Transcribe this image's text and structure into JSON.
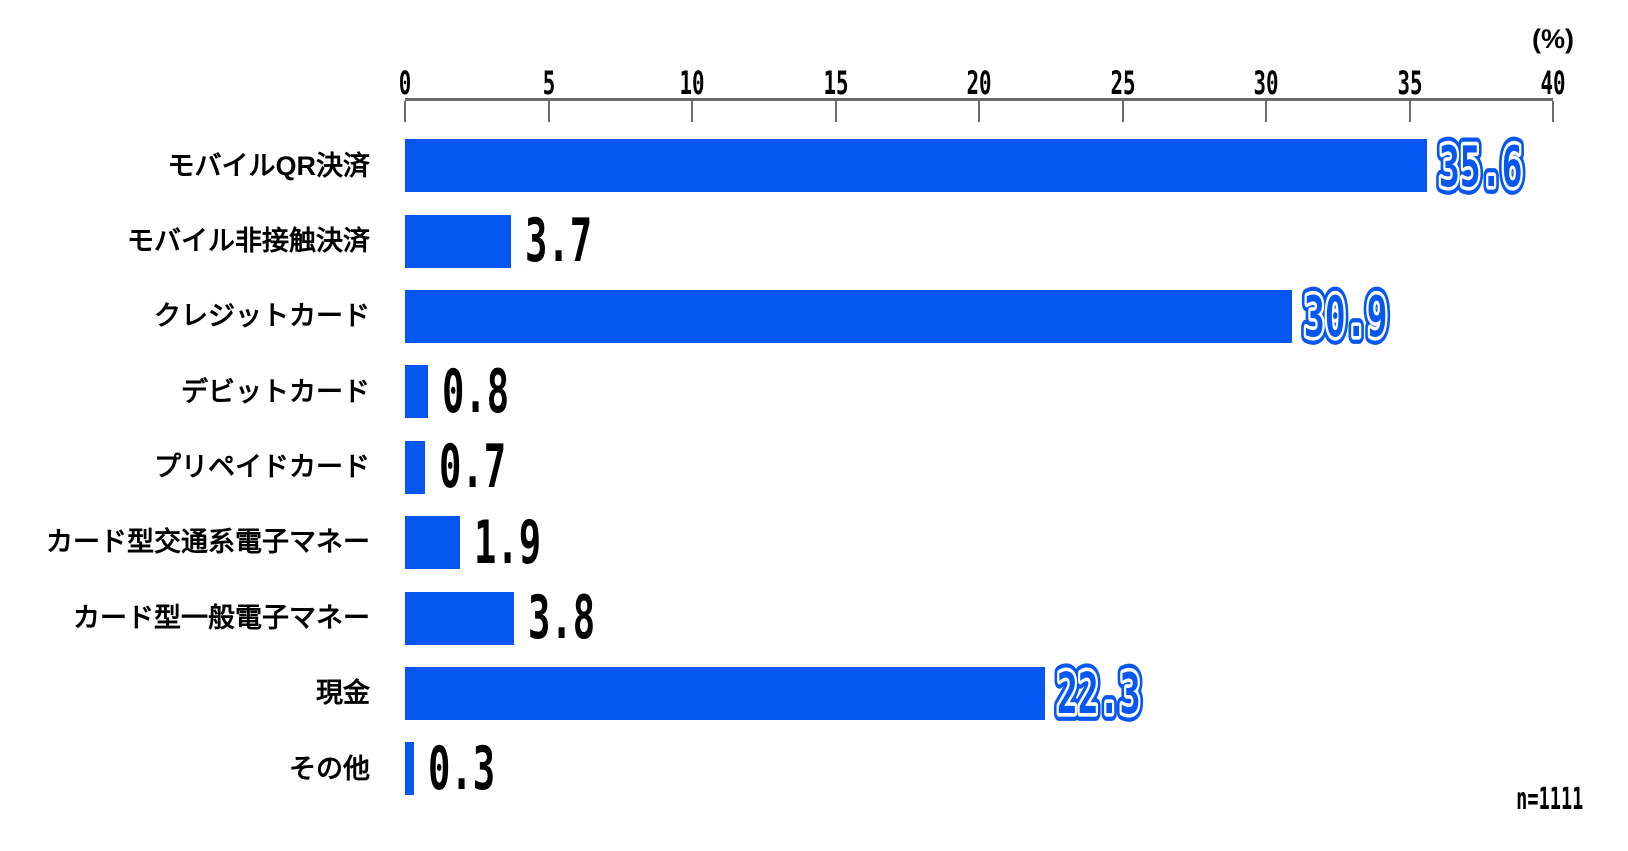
{
  "chart_data": {
    "type": "bar",
    "orientation": "horizontal",
    "title": "",
    "categories": [
      "モバイルQR決済",
      "モバイル非接触決済",
      "クレジットカード",
      "デビットカード",
      "プリペイドカード",
      "カード型交通系電子マネー",
      "カード型一般電子マネー",
      "現金",
      "その他"
    ],
    "values": [
      35.6,
      3.7,
      30.9,
      0.8,
      0.7,
      1.9,
      3.8,
      22.3,
      0.3
    ],
    "value_labels": [
      "35.6",
      "3.7",
      "30.9",
      "0.8",
      "0.7",
      "1.9",
      "3.8",
      "22.3",
      "0.3"
    ],
    "emphasized_rows": [
      0,
      2,
      7
    ],
    "xlim": [
      0,
      40
    ],
    "x_ticks": [
      0,
      5,
      10,
      15,
      20,
      25,
      30,
      35,
      40
    ],
    "x_unit_label": "(%)",
    "sample_size_label": "n=1111",
    "grid": "off",
    "legend": "none",
    "colors": {
      "bar": "#0656F2",
      "axis": "#6B6B6B",
      "value_text": "#000000",
      "emphasized_value_fill": "#0656F2",
      "emphasized_value_ring": "#FFFFFF",
      "background": "#FFFFFF"
    }
  }
}
